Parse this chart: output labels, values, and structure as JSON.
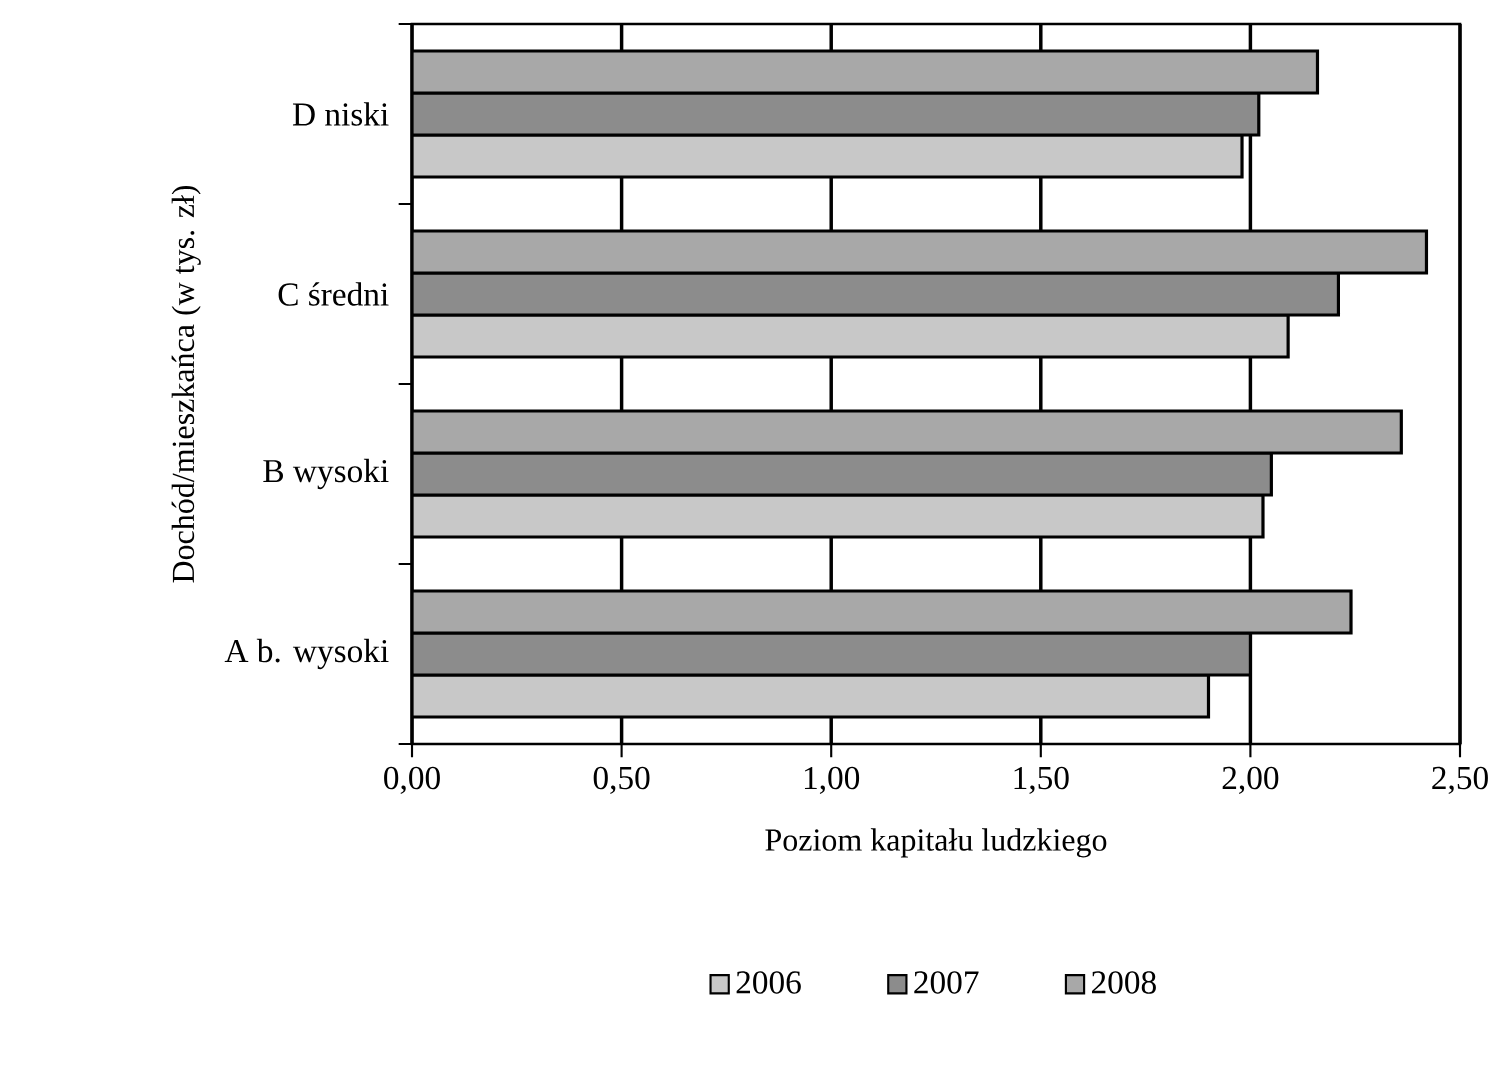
{
  "chart_data": {
    "type": "bar",
    "orientation": "horizontal",
    "xlabel": "Poziom kapitału ludzkiego",
    "ylabel": "Dochód/mieszkańca (w tys. zł)",
    "categories": [
      "D niski",
      "C średni",
      "B wysoki",
      "A b. wysoki"
    ],
    "series": [
      {
        "name": "2006",
        "color": "#c8c8c8",
        "values": [
          1.98,
          2.09,
          2.03,
          1.9
        ]
      },
      {
        "name": "2007",
        "color": "#8c8c8c",
        "values": [
          2.02,
          2.21,
          2.05,
          2.0
        ]
      },
      {
        "name": "2008",
        "color": "#a8a8a8",
        "values": [
          2.16,
          2.42,
          2.36,
          2.24
        ]
      }
    ],
    "xlim": [
      0,
      2.5
    ],
    "xticks": [
      {
        "value": 0,
        "label": "0,00"
      },
      {
        "value": 0.5,
        "label": "0,50"
      },
      {
        "value": 1,
        "label": "1,00"
      },
      {
        "value": 1.5,
        "label": "1,50"
      },
      {
        "value": 2,
        "label": "2,00"
      },
      {
        "value": 2.5,
        "label": "2,50"
      }
    ],
    "grid": "x",
    "legend": "bottom"
  }
}
